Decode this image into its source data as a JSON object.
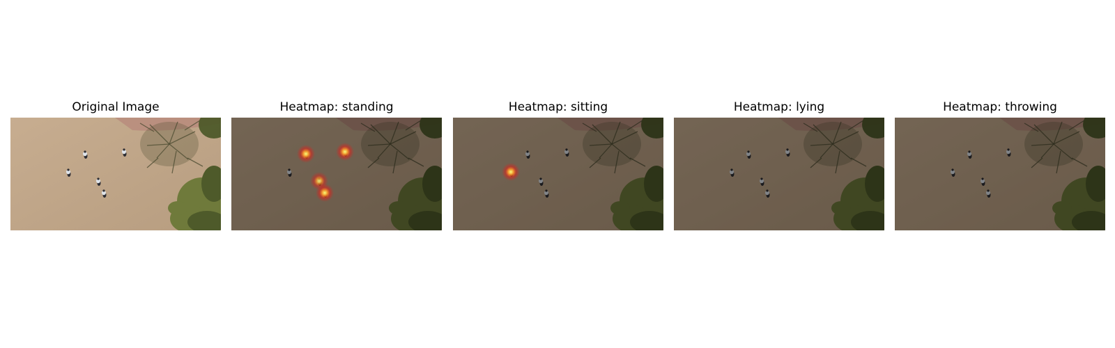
{
  "figure": {
    "panels": [
      {
        "title": "Original Image",
        "kind": "original",
        "tint": "#000000",
        "tint_opacity": 0.0,
        "hotspots": []
      },
      {
        "title": "Heatmap: standing",
        "kind": "heatmap",
        "tint": "#000000",
        "tint_opacity": 0.42,
        "hotspots": [
          {
            "person": "person-upper-left",
            "intensity": 1.0
          },
          {
            "person": "person-upper-right",
            "intensity": 1.0
          },
          {
            "person": "person-middle",
            "intensity": 0.85
          },
          {
            "person": "person-lower",
            "intensity": 1.0
          }
        ]
      },
      {
        "title": "Heatmap: sitting",
        "kind": "heatmap",
        "tint": "#000000",
        "tint_opacity": 0.42,
        "hotspots": [
          {
            "person": "person-crouching",
            "intensity": 1.0
          }
        ]
      },
      {
        "title": "Heatmap: lying",
        "kind": "heatmap",
        "tint": "#000000",
        "tint_opacity": 0.42,
        "hotspots": []
      },
      {
        "title": "Heatmap: throwing",
        "kind": "heatmap",
        "tint": "#000000",
        "tint_opacity": 0.42,
        "hotspots": []
      }
    ],
    "colors": {
      "ground": "#c7ad90",
      "ground_dark": "#b79d80",
      "path": "#b88a7c",
      "tree": "#4a4a30",
      "foliage": "#6f7a3b",
      "foliage_dark": "#4e5a2a",
      "person_light": "#dfe4ea",
      "person_dark": "#2d2d33",
      "heat_core": "#f6ff7a",
      "heat_mid": "#ff9a2a",
      "heat_edge": "#e0201a"
    }
  }
}
